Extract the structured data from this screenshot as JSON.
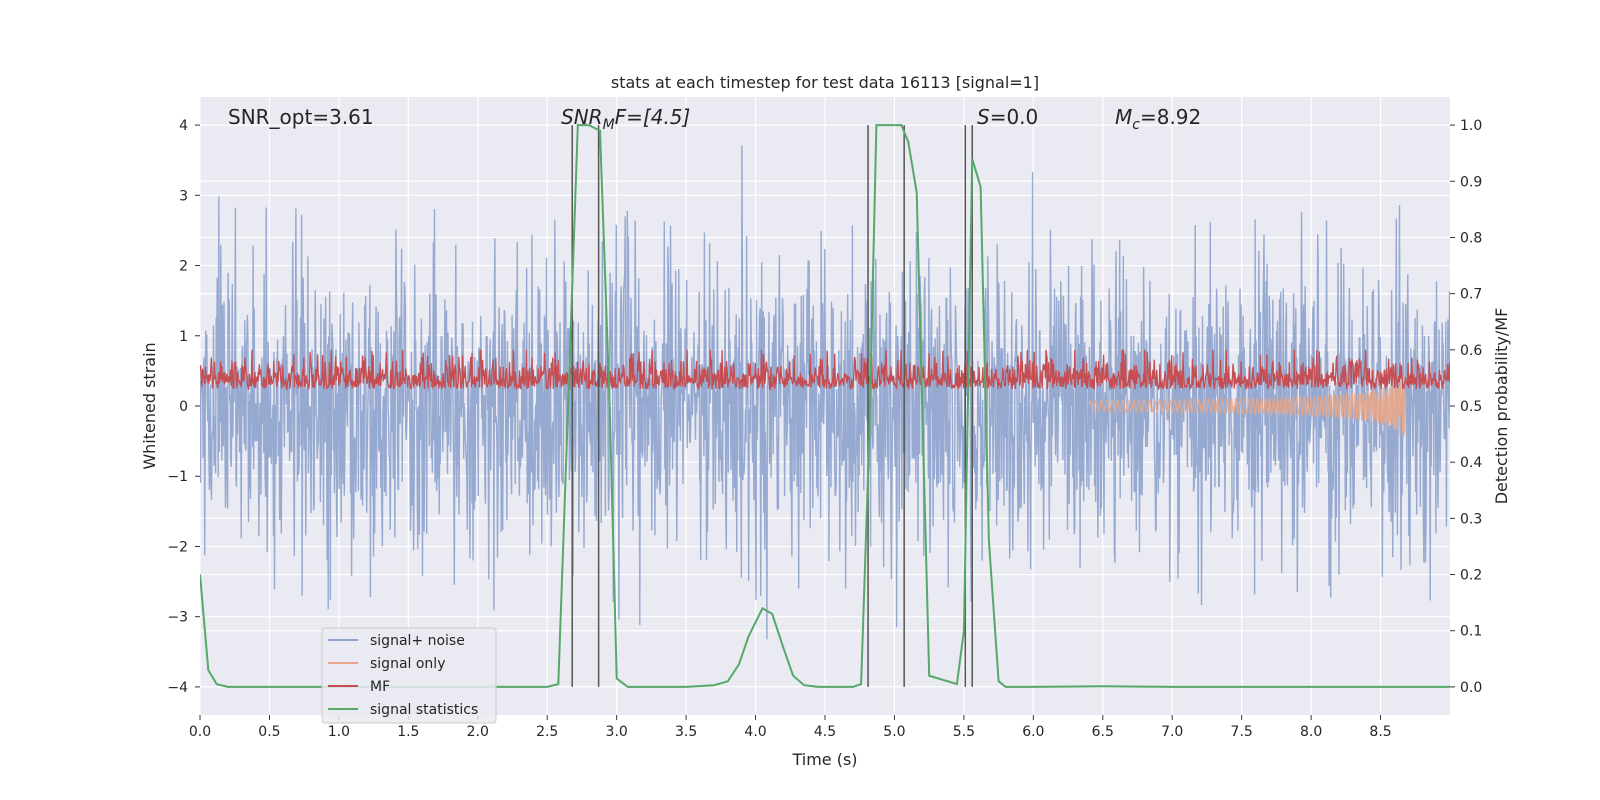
{
  "chart_data": {
    "type": "line",
    "title": "stats at each timestep for test data 16113 [signal=1]",
    "xlabel": "Time (s)",
    "ylabel_left": "Whitened strain",
    "ylabel_right": "Detection probability/MF",
    "xlim": [
      0.0,
      9.0
    ],
    "ylim_left": [
      -4.4,
      4.4
    ],
    "ylim_right": [
      -0.05,
      1.05
    ],
    "x_ticks": [
      "0.0",
      "0.5",
      "1.0",
      "1.5",
      "2.0",
      "2.5",
      "3.0",
      "3.5",
      "4.0",
      "4.5",
      "5.0",
      "5.5",
      "6.0",
      "6.5",
      "7.0",
      "7.5",
      "8.0",
      "8.5"
    ],
    "y_ticks_left": [
      "4",
      "3",
      "2",
      "1",
      "0",
      "−1",
      "−2",
      "−3",
      "−4"
    ],
    "y_ticks_right": [
      "1.0",
      "0.9",
      "0.8",
      "0.7",
      "0.6",
      "0.5",
      "0.4",
      "0.3",
      "0.2",
      "0.1",
      "0.0"
    ],
    "grid": true,
    "legend_position": "lower-left",
    "annotations": {
      "snr_opt": "SNR_opt=3.61",
      "snr_mf_main": "SNR",
      "snr_mf_sub": "M",
      "snr_mf_rest": "F=[4.5]",
      "s_main": "S",
      "s_rest": "=0.0",
      "mc_main": "M",
      "mc_sub": "c",
      "mc_rest": "=8.92"
    },
    "vertical_lines_x": [
      2.68,
      2.87,
      4.81,
      5.07,
      5.51,
      5.56
    ],
    "series": [
      {
        "name": "signal+ noise",
        "color": "#8da2cc",
        "description_style": "dense noise",
        "amplitude": 4.0
      },
      {
        "name": "signal only",
        "color": "#e8a78a"
      },
      {
        "name": "MF",
        "color": "#c44e52"
      },
      {
        "name": "signal statistics",
        "color": "#55a868",
        "x": [
          0.0,
          0.06,
          0.12,
          0.2,
          0.5,
          1.0,
          1.5,
          2.0,
          2.5,
          2.58,
          2.65,
          2.72,
          2.8,
          2.88,
          2.95,
          3.0,
          3.08,
          3.5,
          3.7,
          3.8,
          3.88,
          3.95,
          4.05,
          4.12,
          4.2,
          4.27,
          4.35,
          4.45,
          4.7,
          4.76,
          4.82,
          4.87,
          4.93,
          5.05,
          5.1,
          5.16,
          5.2,
          5.25,
          5.45,
          5.5,
          5.56,
          5.62,
          5.68,
          5.75,
          5.8,
          6.0,
          6.5,
          7.0,
          7.5,
          8.0,
          8.5,
          9.0
        ],
        "y": [
          0.2,
          0.03,
          0.005,
          0.0,
          0.0,
          0.0,
          0.0,
          0.0,
          0.0,
          0.005,
          0.5,
          1.0,
          1.0,
          0.99,
          0.5,
          0.015,
          0.0,
          0.0,
          0.003,
          0.01,
          0.04,
          0.09,
          0.14,
          0.13,
          0.07,
          0.02,
          0.003,
          0.0,
          0.0,
          0.005,
          0.45,
          1.0,
          1.0,
          1.0,
          0.97,
          0.88,
          0.5,
          0.02,
          0.005,
          0.1,
          0.94,
          0.89,
          0.26,
          0.01,
          0.0,
          0.0,
          0.001,
          0.0,
          0.0,
          0.0,
          0.0,
          0.0
        ]
      }
    ]
  }
}
